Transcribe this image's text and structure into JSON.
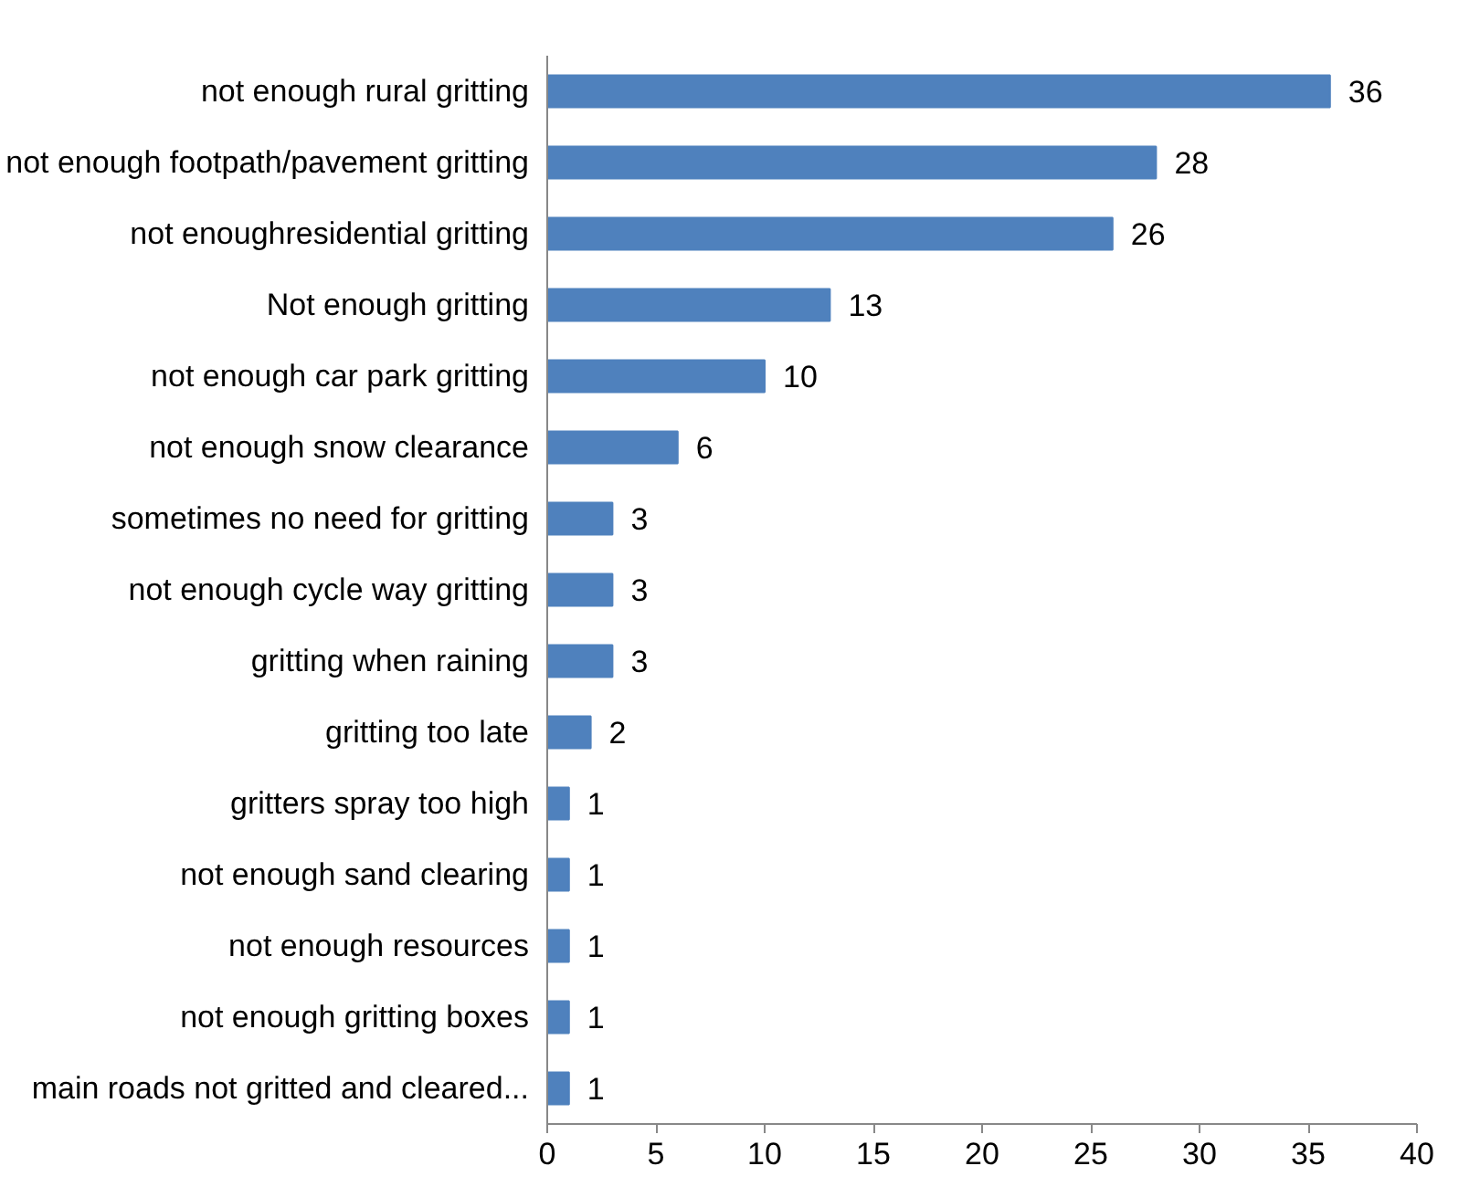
{
  "chart_data": {
    "type": "bar",
    "orientation": "horizontal",
    "categories": [
      "not enough rural gritting",
      "not enough footpath/pavement gritting",
      "not enoughresidential gritting",
      "Not enough gritting",
      "not enough car park gritting",
      "not enough snow clearance",
      "sometimes no need for gritting",
      "not enough cycle way gritting",
      "gritting when raining",
      "gritting too late",
      "gritters spray too high",
      "not enough sand clearing",
      "not enough resources",
      "not enough gritting boxes",
      "main roads not gritted and cleared..."
    ],
    "values": [
      36,
      28,
      26,
      13,
      10,
      6,
      3,
      3,
      3,
      2,
      1,
      1,
      1,
      1,
      1
    ],
    "color": "#4f81bd",
    "xlim": [
      0,
      40
    ],
    "xticks": [
      0,
      5,
      10,
      15,
      20,
      25,
      30,
      35,
      40
    ],
    "grid": false,
    "data_labels": true
  }
}
